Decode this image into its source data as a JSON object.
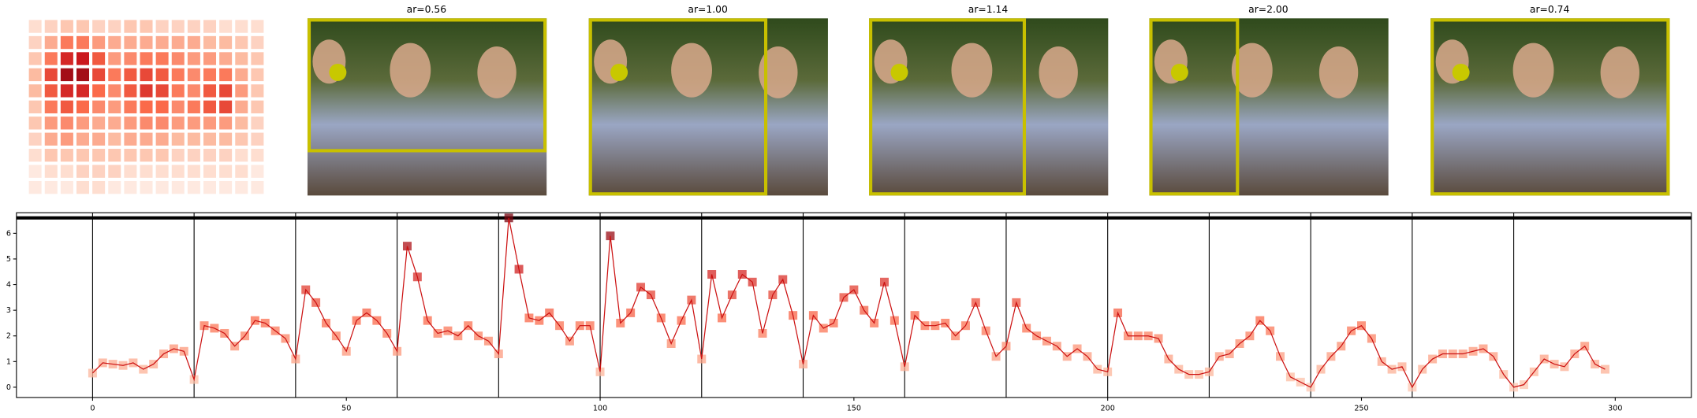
{
  "heatmap": {
    "values": [
      [
        0.1,
        0.15,
        0.2,
        0.2,
        0.15,
        0.15,
        0.2,
        0.2,
        0.15,
        0.15,
        0.15,
        0.15,
        0.1,
        0.1,
        0.1
      ],
      [
        0.15,
        0.3,
        0.45,
        0.45,
        0.35,
        0.3,
        0.3,
        0.3,
        0.3,
        0.3,
        0.3,
        0.25,
        0.25,
        0.2,
        0.15
      ],
      [
        0.2,
        0.45,
        0.7,
        0.75,
        0.55,
        0.35,
        0.4,
        0.45,
        0.45,
        0.4,
        0.35,
        0.35,
        0.3,
        0.25,
        0.2
      ],
      [
        0.25,
        0.6,
        0.85,
        0.85,
        0.6,
        0.45,
        0.55,
        0.6,
        0.55,
        0.45,
        0.4,
        0.45,
        0.45,
        0.3,
        0.2
      ],
      [
        0.25,
        0.55,
        0.7,
        0.7,
        0.5,
        0.4,
        0.55,
        0.65,
        0.6,
        0.45,
        0.4,
        0.55,
        0.6,
        0.35,
        0.2
      ],
      [
        0.2,
        0.45,
        0.55,
        0.5,
        0.4,
        0.35,
        0.45,
        0.5,
        0.5,
        0.4,
        0.45,
        0.55,
        0.6,
        0.3,
        0.2
      ],
      [
        0.2,
        0.35,
        0.4,
        0.35,
        0.3,
        0.3,
        0.35,
        0.4,
        0.4,
        0.35,
        0.35,
        0.35,
        0.35,
        0.25,
        0.15
      ],
      [
        0.15,
        0.3,
        0.35,
        0.3,
        0.3,
        0.25,
        0.3,
        0.3,
        0.3,
        0.25,
        0.25,
        0.25,
        0.25,
        0.2,
        0.15
      ],
      [
        0.1,
        0.2,
        0.2,
        0.2,
        0.2,
        0.2,
        0.2,
        0.2,
        0.2,
        0.15,
        0.15,
        0.15,
        0.15,
        0.1,
        0.1
      ],
      [
        0.05,
        0.1,
        0.1,
        0.15,
        0.15,
        0.15,
        0.1,
        0.1,
        0.1,
        0.1,
        0.1,
        0.1,
        0.1,
        0.1,
        0.05
      ],
      [
        0.05,
        0.05,
        0.05,
        0.1,
        0.1,
        0.05,
        0.05,
        0.05,
        0.05,
        0.05,
        0.05,
        0.05,
        0.05,
        0.05,
        0.05
      ]
    ]
  },
  "panels": [
    {
      "title": "ar=0.56"
    },
    {
      "title": "ar=1.00"
    },
    {
      "title": "ar=1.14"
    },
    {
      "title": "ar=2.00"
    },
    {
      "title": "ar=0.74"
    }
  ],
  "chart_data": {
    "type": "line",
    "color": "#cc1111",
    "x": [
      0,
      2,
      4,
      6,
      8,
      10,
      12,
      14,
      16,
      18,
      20,
      22,
      24,
      26,
      28,
      30,
      32,
      34,
      36,
      38,
      40,
      42,
      44,
      46,
      48,
      50,
      52,
      54,
      56,
      58,
      60,
      62,
      64,
      66,
      68,
      70,
      72,
      74,
      76,
      78,
      80,
      82,
      84,
      86,
      88,
      90,
      92,
      94,
      96,
      98,
      100,
      102,
      104,
      106,
      108,
      110,
      112,
      114,
      116,
      118,
      120,
      122,
      124,
      126,
      128,
      130,
      132,
      134,
      136,
      138,
      140,
      142,
      144,
      146,
      148,
      150,
      152,
      154,
      156,
      158,
      160,
      162,
      164,
      166,
      168,
      170,
      172,
      174,
      176,
      178,
      180,
      182,
      184,
      186,
      188,
      190,
      192,
      194,
      196,
      198,
      200,
      202,
      204,
      206,
      208,
      210,
      212,
      214,
      216,
      218,
      220,
      222,
      224,
      226,
      228,
      230,
      232,
      234,
      236,
      238,
      240,
      242,
      244,
      246,
      248,
      250,
      252,
      254,
      256,
      258,
      260,
      262,
      264,
      266,
      268,
      270,
      272,
      274,
      276,
      278,
      280,
      282,
      284,
      286,
      288,
      290,
      292,
      294,
      296,
      298
    ],
    "values": [
      0.55,
      0.95,
      0.9,
      0.85,
      0.95,
      0.7,
      0.9,
      1.3,
      1.5,
      1.4,
      0.3,
      2.4,
      2.3,
      2.1,
      1.6,
      2.0,
      2.6,
      2.5,
      2.2,
      1.9,
      1.1,
      3.8,
      3.3,
      2.5,
      2.0,
      1.4,
      2.6,
      2.9,
      2.6,
      2.1,
      1.4,
      5.5,
      4.3,
      2.6,
      2.1,
      2.2,
      2.0,
      2.4,
      2.0,
      1.8,
      1.3,
      6.6,
      4.6,
      2.7,
      2.6,
      2.9,
      2.4,
      1.8,
      2.4,
      2.4,
      0.6,
      5.9,
      2.5,
      2.9,
      3.9,
      3.6,
      2.7,
      1.7,
      2.6,
      3.4,
      1.1,
      4.4,
      2.7,
      3.6,
      4.4,
      4.1,
      2.1,
      3.6,
      4.2,
      2.8,
      0.9,
      2.8,
      2.3,
      2.5,
      3.5,
      3.8,
      3.0,
      2.5,
      4.1,
      2.6,
      0.8,
      2.8,
      2.4,
      2.4,
      2.5,
      2.0,
      2.4,
      3.3,
      2.2,
      1.2,
      1.6,
      3.3,
      2.3,
      2.0,
      1.8,
      1.6,
      1.2,
      1.5,
      1.2,
      0.7,
      0.6,
      2.9,
      2.0,
      2.0,
      2.0,
      1.9,
      1.1,
      0.7,
      0.5,
      0.5,
      0.6,
      1.2,
      1.3,
      1.7,
      2.0,
      2.6,
      2.2,
      1.2,
      0.4,
      0.2,
      0,
      0.7,
      1.2,
      1.6,
      2.2,
      2.4,
      1.9,
      1.0,
      0.7,
      0.8,
      0,
      0.7,
      1.1,
      1.3,
      1.3,
      1.3,
      1.4,
      1.5,
      1.2,
      0.5,
      0,
      0.1,
      0.6,
      1.1,
      0.9,
      0.8,
      1.3,
      1.6,
      0.9,
      0.7
    ],
    "xlim": [
      -15,
      315
    ],
    "ylim": [
      -0.4,
      6.8
    ],
    "xticks": [
      0,
      50,
      100,
      150,
      200,
      250,
      300
    ],
    "yticks": [
      0,
      1,
      2,
      3,
      4,
      5,
      6
    ],
    "vlines": [
      0,
      20,
      40,
      60,
      80,
      100,
      120,
      140,
      160,
      180,
      200,
      220,
      240,
      260,
      280
    ],
    "hline": 6.6
  }
}
